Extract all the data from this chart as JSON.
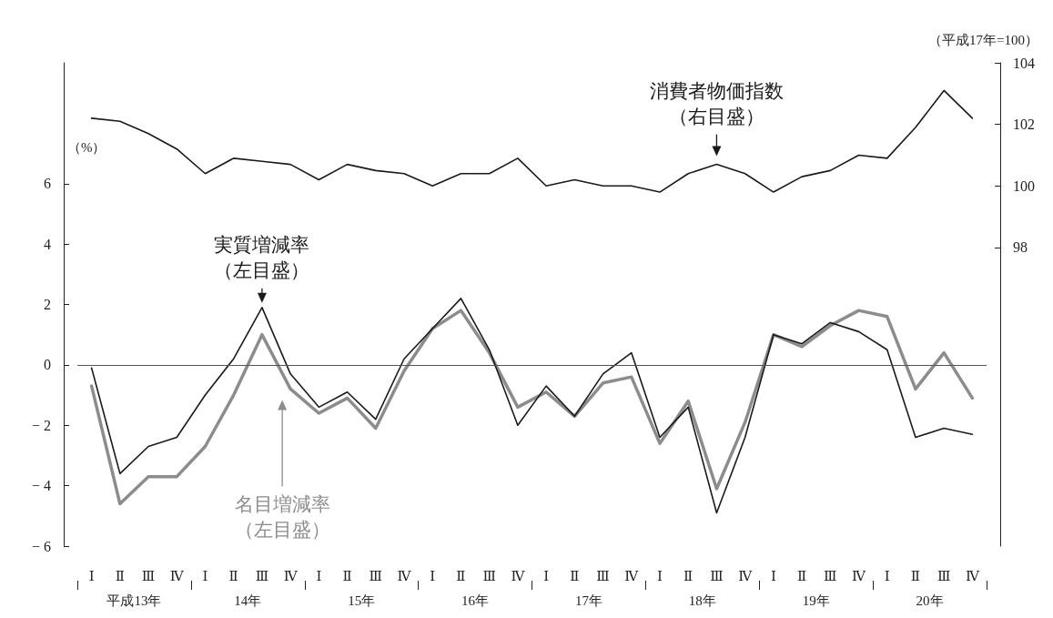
{
  "chart_data": {
    "type": "line",
    "ylabel": "（%）",
    "y2label": "（平成17年=100）",
    "categories": [
      "Ⅰ",
      "Ⅱ",
      "Ⅲ",
      "Ⅳ",
      "Ⅰ",
      "Ⅱ",
      "Ⅲ",
      "Ⅳ",
      "Ⅰ",
      "Ⅱ",
      "Ⅲ",
      "Ⅳ",
      "Ⅰ",
      "Ⅱ",
      "Ⅲ",
      "Ⅳ",
      "Ⅰ",
      "Ⅱ",
      "Ⅲ",
      "Ⅳ",
      "Ⅰ",
      "Ⅱ",
      "Ⅲ",
      "Ⅳ",
      "Ⅰ",
      "Ⅱ",
      "Ⅲ",
      "Ⅳ",
      "Ⅰ",
      "Ⅱ",
      "Ⅲ",
      "Ⅳ"
    ],
    "annotations": [
      "平成13年",
      "14年",
      "15年",
      "16年",
      "17年",
      "18年",
      "19年",
      "20年"
    ],
    "series": [
      {
        "name": "実質増減率（左目盛）",
        "color": "#1a1a1a",
        "values": [
          -0.1,
          -3.6,
          -2.7,
          -2.4,
          -1.0,
          0.2,
          1.9,
          -0.3,
          -1.4,
          -0.9,
          -1.8,
          0.2,
          1.2,
          2.2,
          0.5,
          -2.0,
          -0.7,
          -1.7,
          -0.3,
          0.4,
          -2.4,
          -1.4,
          -4.9,
          -2.4,
          1.0,
          0.7,
          1.4,
          1.1,
          0.5,
          -2.4,
          -2.1,
          -2.3
        ]
      },
      {
        "name": "名目増減率（左目盛）",
        "color": "#8c8c8c",
        "values": [
          -0.7,
          -4.6,
          -3.7,
          -3.7,
          -2.7,
          -1.0,
          1.0,
          -0.8,
          -1.6,
          -1.1,
          -2.1,
          -0.2,
          1.2,
          1.8,
          0.4,
          -1.4,
          -0.9,
          -1.7,
          -0.6,
          -0.4,
          -2.6,
          -1.2,
          -4.1,
          -1.9,
          1.0,
          0.6,
          1.3,
          1.8,
          1.6,
          -0.8,
          0.4,
          -1.1
        ]
      },
      {
        "name": "消費者物価指数（右目盛）",
        "color": "#1a1a1a",
        "axis": "y2",
        "values": [
          102.2,
          102.1,
          101.7,
          101.2,
          100.4,
          100.9,
          100.8,
          100.7,
          100.2,
          100.7,
          100.5,
          100.4,
          100.0,
          100.4,
          100.4,
          100.9,
          100.0,
          100.2,
          100.0,
          100.0,
          99.8,
          100.4,
          100.7,
          100.4,
          99.8,
          100.3,
          100.5,
          101.0,
          100.9,
          101.9,
          103.1,
          102.2
        ]
      }
    ],
    "ylim": [
      -6,
      10
    ],
    "yticks": [
      {
        "value": -6,
        "label": "− 6"
      },
      {
        "value": -4,
        "label": "− 4"
      },
      {
        "value": -2,
        "label": "− 2"
      },
      0,
      2,
      4,
      6
    ],
    "y2lim": [
      88.3,
      104
    ],
    "y2ticks": [
      98,
      100,
      102,
      104
    ],
    "ref_lines": [
      {
        "axis": "y",
        "value": 0,
        "color": "#555555"
      }
    ],
    "grid": false,
    "legend": false,
    "marker": "none",
    "line_style": "solid"
  }
}
